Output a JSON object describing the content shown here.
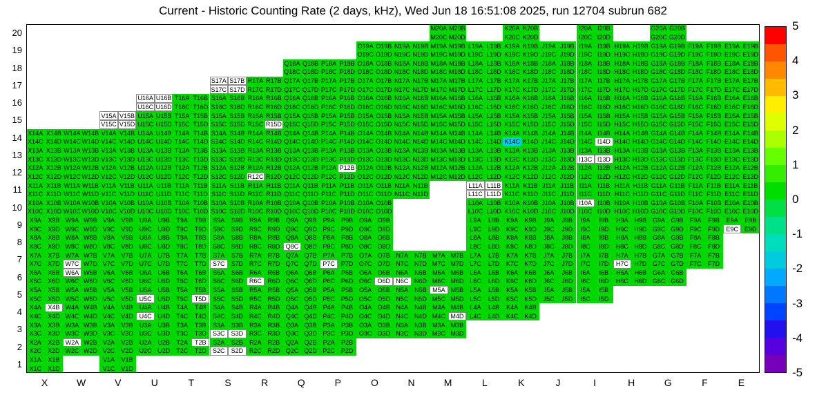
{
  "title": "Current - Historic Counting Rate (2 days, kHz), Wed Jun 18 16:51:08 2025, run 12704 subrun 682",
  "chart_data": {
    "type": "heatmap",
    "title": "Current - Historic Counting Rate (2 days, kHz), Wed Jun 18 16:51:08 2025, run 12704 subrun 682",
    "x_axis_labels": [
      "X",
      "W",
      "V",
      "U",
      "T",
      "S",
      "R",
      "Q",
      "P",
      "O",
      "N",
      "M",
      "L",
      "K",
      "J",
      "I",
      "H",
      "G",
      "F",
      "E"
    ],
    "y_axis_labels": [
      "20",
      "19",
      "18",
      "17",
      "16",
      "15",
      "14",
      "13",
      "12",
      "11",
      "10",
      "9",
      "8",
      "7",
      "6",
      "5",
      "4",
      "3",
      "2",
      "1"
    ],
    "sub_channels": [
      "A",
      "B",
      "C",
      "D"
    ],
    "rows": [
      {
        "n": 20,
        "cols": [
          "M",
          "K",
          "I",
          "G"
        ]
      },
      {
        "n": 19,
        "from": "O",
        "to": "E"
      },
      {
        "n": 18,
        "from": "Q",
        "to": "E"
      },
      {
        "n": 17,
        "from": "S",
        "to": "E"
      },
      {
        "n": 16,
        "from": "U",
        "to": "E"
      },
      {
        "n": 15,
        "from": "V",
        "to": "E"
      },
      {
        "n": 14,
        "from": "X",
        "to": "E"
      },
      {
        "n": 13,
        "from": "X",
        "to": "E"
      },
      {
        "n": 12,
        "from": "X",
        "to": "E"
      },
      {
        "n": 11,
        "from": "X",
        "to": "E",
        "missing": [
          "M"
        ]
      },
      {
        "n": 10,
        "from": "X",
        "to": "E",
        "missing": [
          "N",
          "M"
        ]
      },
      {
        "n": 9,
        "from": "X",
        "to": "E",
        "missing": [
          "N",
          "M"
        ]
      },
      {
        "n": 8,
        "from": "X",
        "to": "F",
        "missing": [
          "N",
          "M"
        ]
      },
      {
        "n": 7,
        "from": "X",
        "to": "F"
      },
      {
        "n": 6,
        "from": "X",
        "to": "G"
      },
      {
        "n": 5,
        "from": "X",
        "to": "I"
      },
      {
        "n": 4,
        "from": "X",
        "to": "K"
      },
      {
        "n": 3,
        "from": "X",
        "to": "M"
      },
      {
        "n": 2,
        "from": "X",
        "to": "P"
      },
      {
        "n": 1,
        "cols": [
          "X",
          "V"
        ]
      }
    ],
    "white_channels": [
      "S17A",
      "S17B",
      "S17C",
      "S17D",
      "U16A",
      "U16B",
      "U16C",
      "U16D",
      "V15A",
      "V15B",
      "V15C",
      "V15D",
      "R15D",
      "I14D",
      "I13C",
      "I13D",
      "R12C",
      "P12B",
      "L11A",
      "L11B",
      "L11C",
      "L11D",
      "I10A",
      "E9C",
      "Q8C",
      "W7C",
      "S7C",
      "P7C",
      "H7C",
      "W6A",
      "R6C",
      "O6D",
      "N6C",
      "M5A",
      "U5C",
      "T5D",
      "X4B",
      "U4C",
      "M4D",
      "S3C",
      "S3D",
      "W2A",
      "T2B",
      "S2C",
      "S2D"
    ],
    "cyan_channels": [
      "K14C"
    ],
    "colors": {
      "normal": "#00d800",
      "white": "#ffffff",
      "cyan": "#00ccf0",
      "text": "#000000"
    },
    "colorbar": {
      "min": -5,
      "max": 5,
      "tick_labels": [
        "5",
        "4",
        "3",
        "2",
        "1",
        "0",
        "-1",
        "-2",
        "-3",
        "-4",
        "-5"
      ],
      "gradient": [
        "#ff0000",
        "#ff5500",
        "#ff8800",
        "#ffbb00",
        "#ffee00",
        "#ddff00",
        "#aaff00",
        "#66ff00",
        "#33ee00",
        "#00dd00",
        "#00e044",
        "#00e088",
        "#00ddbb",
        "#00ccdd",
        "#00aaff",
        "#0077ff",
        "#0044ff",
        "#2211ee",
        "#5500dd",
        "#7700bb"
      ]
    }
  }
}
